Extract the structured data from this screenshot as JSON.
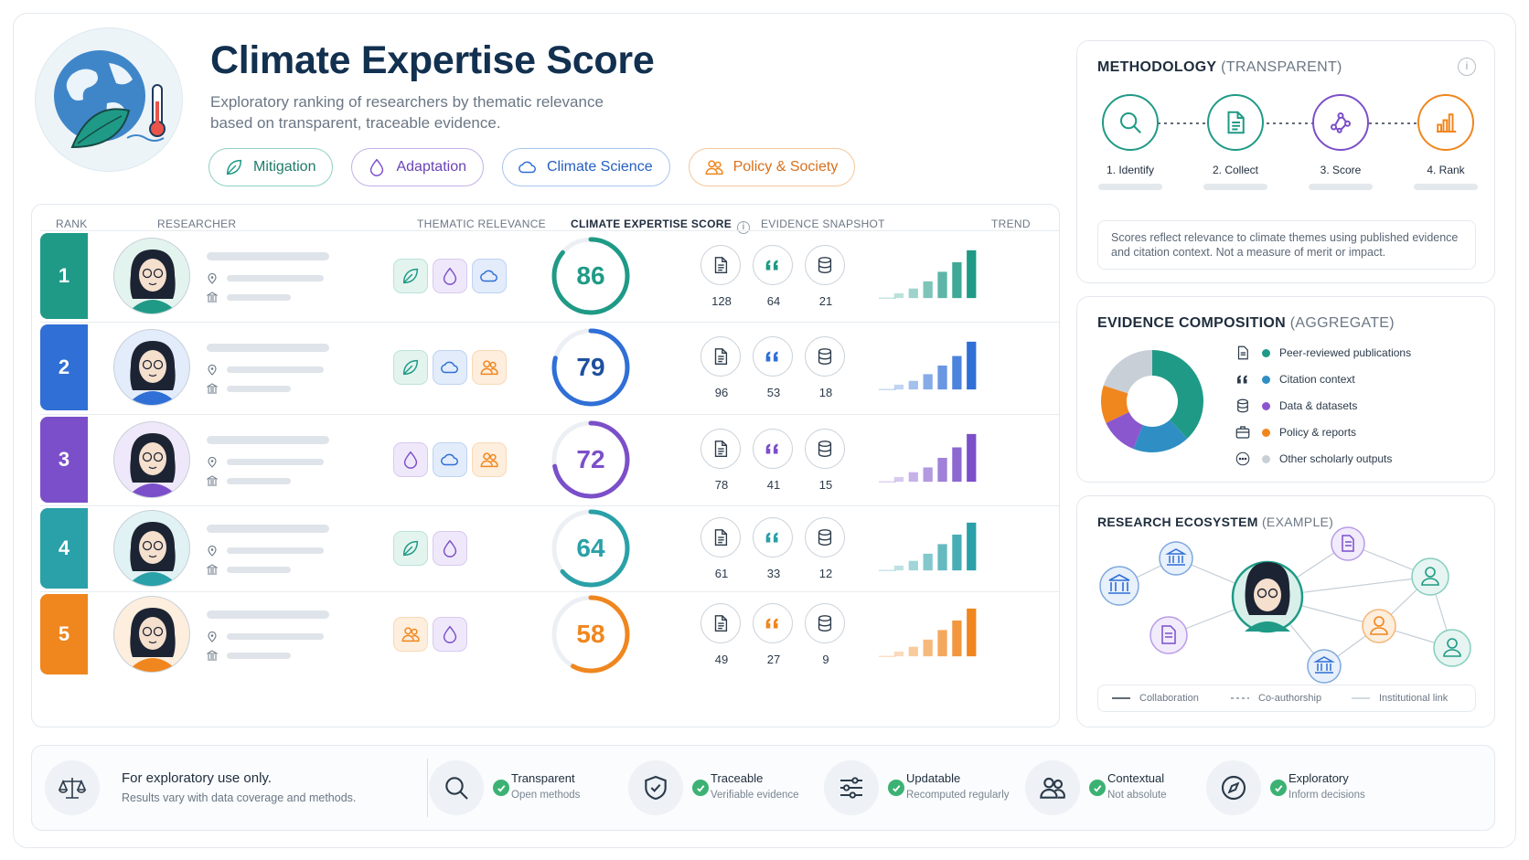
{
  "header": {
    "title": "Climate Expertise Score",
    "subtitle": "Exploratory ranking of researchers by thematic relevance based on transparent, traceable evidence.",
    "chips": [
      {
        "label": "Mitigation",
        "color": "#1f9a86",
        "icon": "leaf-icon"
      },
      {
        "label": "Adaptation",
        "color": "#7b4fc9",
        "icon": "drop-icon"
      },
      {
        "label": "Climate Science",
        "color": "#2f6fd6",
        "icon": "cloud-icon"
      },
      {
        "label": "Policy & Society",
        "color": "#f0861e",
        "icon": "people-icon"
      }
    ]
  },
  "table": {
    "columns": {
      "rank": "RANK",
      "researcher": "RESEARCHER",
      "thematic": "THEMATIC RELEVANCE",
      "score": "CLIMATE EXPERTISE SCORE",
      "evidence": "EVIDENCE SNAPSHOT",
      "trend": "TREND"
    },
    "rows": [
      {
        "rank": "1",
        "color": "#1f9a86",
        "score": 86,
        "themes": [
          "leaf-icon",
          "drop-icon",
          "cloud-icon"
        ],
        "evidence": [
          128,
          64,
          21
        ],
        "trend": [
          0.1,
          0.2,
          0.35,
          0.55,
          0.75,
          1.0
        ]
      },
      {
        "rank": "2",
        "color": "#2f6fd6",
        "score": 79,
        "themes": [
          "leaf-icon",
          "cloud-icon",
          "people-icon"
        ],
        "evidence": [
          96,
          53,
          18
        ],
        "trend": [
          0.1,
          0.18,
          0.32,
          0.5,
          0.7,
          1.0
        ]
      },
      {
        "rank": "3",
        "color": "#7b4fc9",
        "score": 72,
        "themes": [
          "drop-icon",
          "cloud-icon",
          "people-icon"
        ],
        "evidence": [
          78,
          41,
          15
        ],
        "trend": [
          0.1,
          0.2,
          0.3,
          0.5,
          0.72,
          1.0
        ]
      },
      {
        "rank": "4",
        "color": "#2aa0a8",
        "score": 64,
        "themes": [
          "leaf-icon",
          "drop-icon"
        ],
        "evidence": [
          61,
          33,
          12
        ],
        "trend": [
          0.1,
          0.2,
          0.35,
          0.55,
          0.75,
          1.0
        ]
      },
      {
        "rank": "5",
        "color": "#f0861e",
        "score": 58,
        "themes": [
          "people-icon",
          "drop-icon"
        ],
        "evidence": [
          49,
          27,
          9
        ],
        "trend": [
          0.1,
          0.2,
          0.35,
          0.55,
          0.75,
          1.0
        ]
      }
    ]
  },
  "methodology": {
    "title": "METHODOLOGY",
    "title_suffix": "(TRANSPARENT)",
    "steps": [
      {
        "label": "1. Identify",
        "color": "#1f9a86",
        "icon": "search-icon"
      },
      {
        "label": "2. Collect",
        "color": "#1f9a86",
        "icon": "document-icon"
      },
      {
        "label": "3. Score",
        "color": "#7b4fc9",
        "icon": "network-icon"
      },
      {
        "label": "4. Rank",
        "color": "#f0861e",
        "icon": "bar-chart-icon"
      }
    ],
    "note": "Scores reflect relevance to climate themes using published evidence and citation context. Not a measure of merit or impact."
  },
  "composition": {
    "title": "EVIDENCE COMPOSITION",
    "title_suffix": "(AGGREGATE)",
    "chart_data": {
      "type": "pie",
      "categories": [
        "Peer-reviewed publications",
        "Citation context",
        "Data & datasets",
        "Policy & reports",
        "Other scholarly outputs"
      ],
      "values": [
        38,
        18,
        12,
        12,
        20
      ],
      "colors": [
        "#1f9a86",
        "#2f8fc4",
        "#8a57cf",
        "#f0861e",
        "#c9cfd6"
      ]
    }
  },
  "ecosystem": {
    "title": "RESEARCH ECOSYSTEM",
    "title_suffix": "(EXAMPLE)",
    "legend": [
      "Collaboration",
      "Co-authorship",
      "Institutional link"
    ]
  },
  "footer": {
    "disclaimer_title": "For exploratory use only.",
    "disclaimer_sub": "Results vary with data coverage and methods.",
    "principles": [
      {
        "title": "Transparent",
        "sub": "Open methods",
        "icon": "search-icon"
      },
      {
        "title": "Traceable",
        "sub": "Verifiable evidence",
        "icon": "shield-check-icon"
      },
      {
        "title": "Updatable",
        "sub": "Recomputed regularly",
        "icon": "sliders-icon"
      },
      {
        "title": "Contextual",
        "sub": "Not absolute",
        "icon": "people-icon"
      },
      {
        "title": "Exploratory",
        "sub": "Inform decisions",
        "icon": "compass-icon"
      }
    ]
  }
}
